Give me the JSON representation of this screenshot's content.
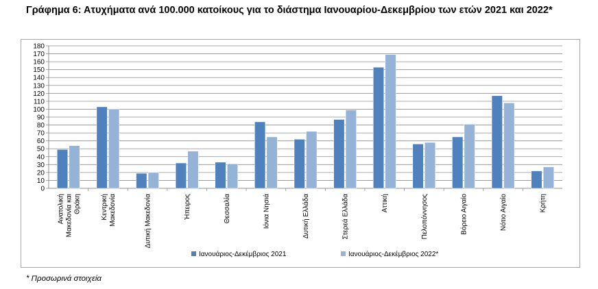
{
  "page": {
    "title": "Γράφημα 6: Ατυχήματα ανά 100.000 κατοίκους για το διάστημα Ιανουαρίου-Δεκεμβρίου των ετών 2021 και 2022*",
    "footnote": "* Προσωρινά στοιχεία"
  },
  "chart_data": {
    "type": "bar",
    "categories": [
      [
        "Ανατολική",
        "Μακεδονία και",
        "Θράκη"
      ],
      [
        "Κεντρική",
        "Μακεδονία"
      ],
      [
        "Δυτική Μακεδονία"
      ],
      [
        "Ήπειρος"
      ],
      [
        "Θεσσαλία"
      ],
      [
        "Ιόνια Νησιά"
      ],
      [
        "Δυτική Ελλάδα"
      ],
      [
        "Στερεά Ελλάδα"
      ],
      [
        "Αττική"
      ],
      [
        "Πελοπόννησος"
      ],
      [
        "Βόρειο Αιγαίο"
      ],
      [
        "Νότιο Αιγαίο"
      ],
      [
        "Κρήτη"
      ]
    ],
    "series": [
      {
        "name": "Ιανουάριος-Δεκέμβριος 2021",
        "color": "#4f81bd",
        "values": [
          49,
          103,
          19,
          32,
          33,
          84,
          62,
          87,
          153,
          56,
          65,
          117,
          22
        ]
      },
      {
        "name": "Ιανουάριος-Δεκέμβριος 2022*",
        "color": "#95b3d7",
        "values": [
          54,
          100,
          20,
          47,
          31,
          65,
          72,
          99,
          169,
          58,
          81,
          108,
          27
        ]
      }
    ],
    "ylim": [
      0,
      180
    ],
    "yticks": [
      0,
      10,
      20,
      30,
      40,
      50,
      60,
      70,
      80,
      90,
      100,
      110,
      120,
      130,
      140,
      150,
      160,
      170,
      180
    ],
    "grid": true,
    "legend": "bottom"
  }
}
